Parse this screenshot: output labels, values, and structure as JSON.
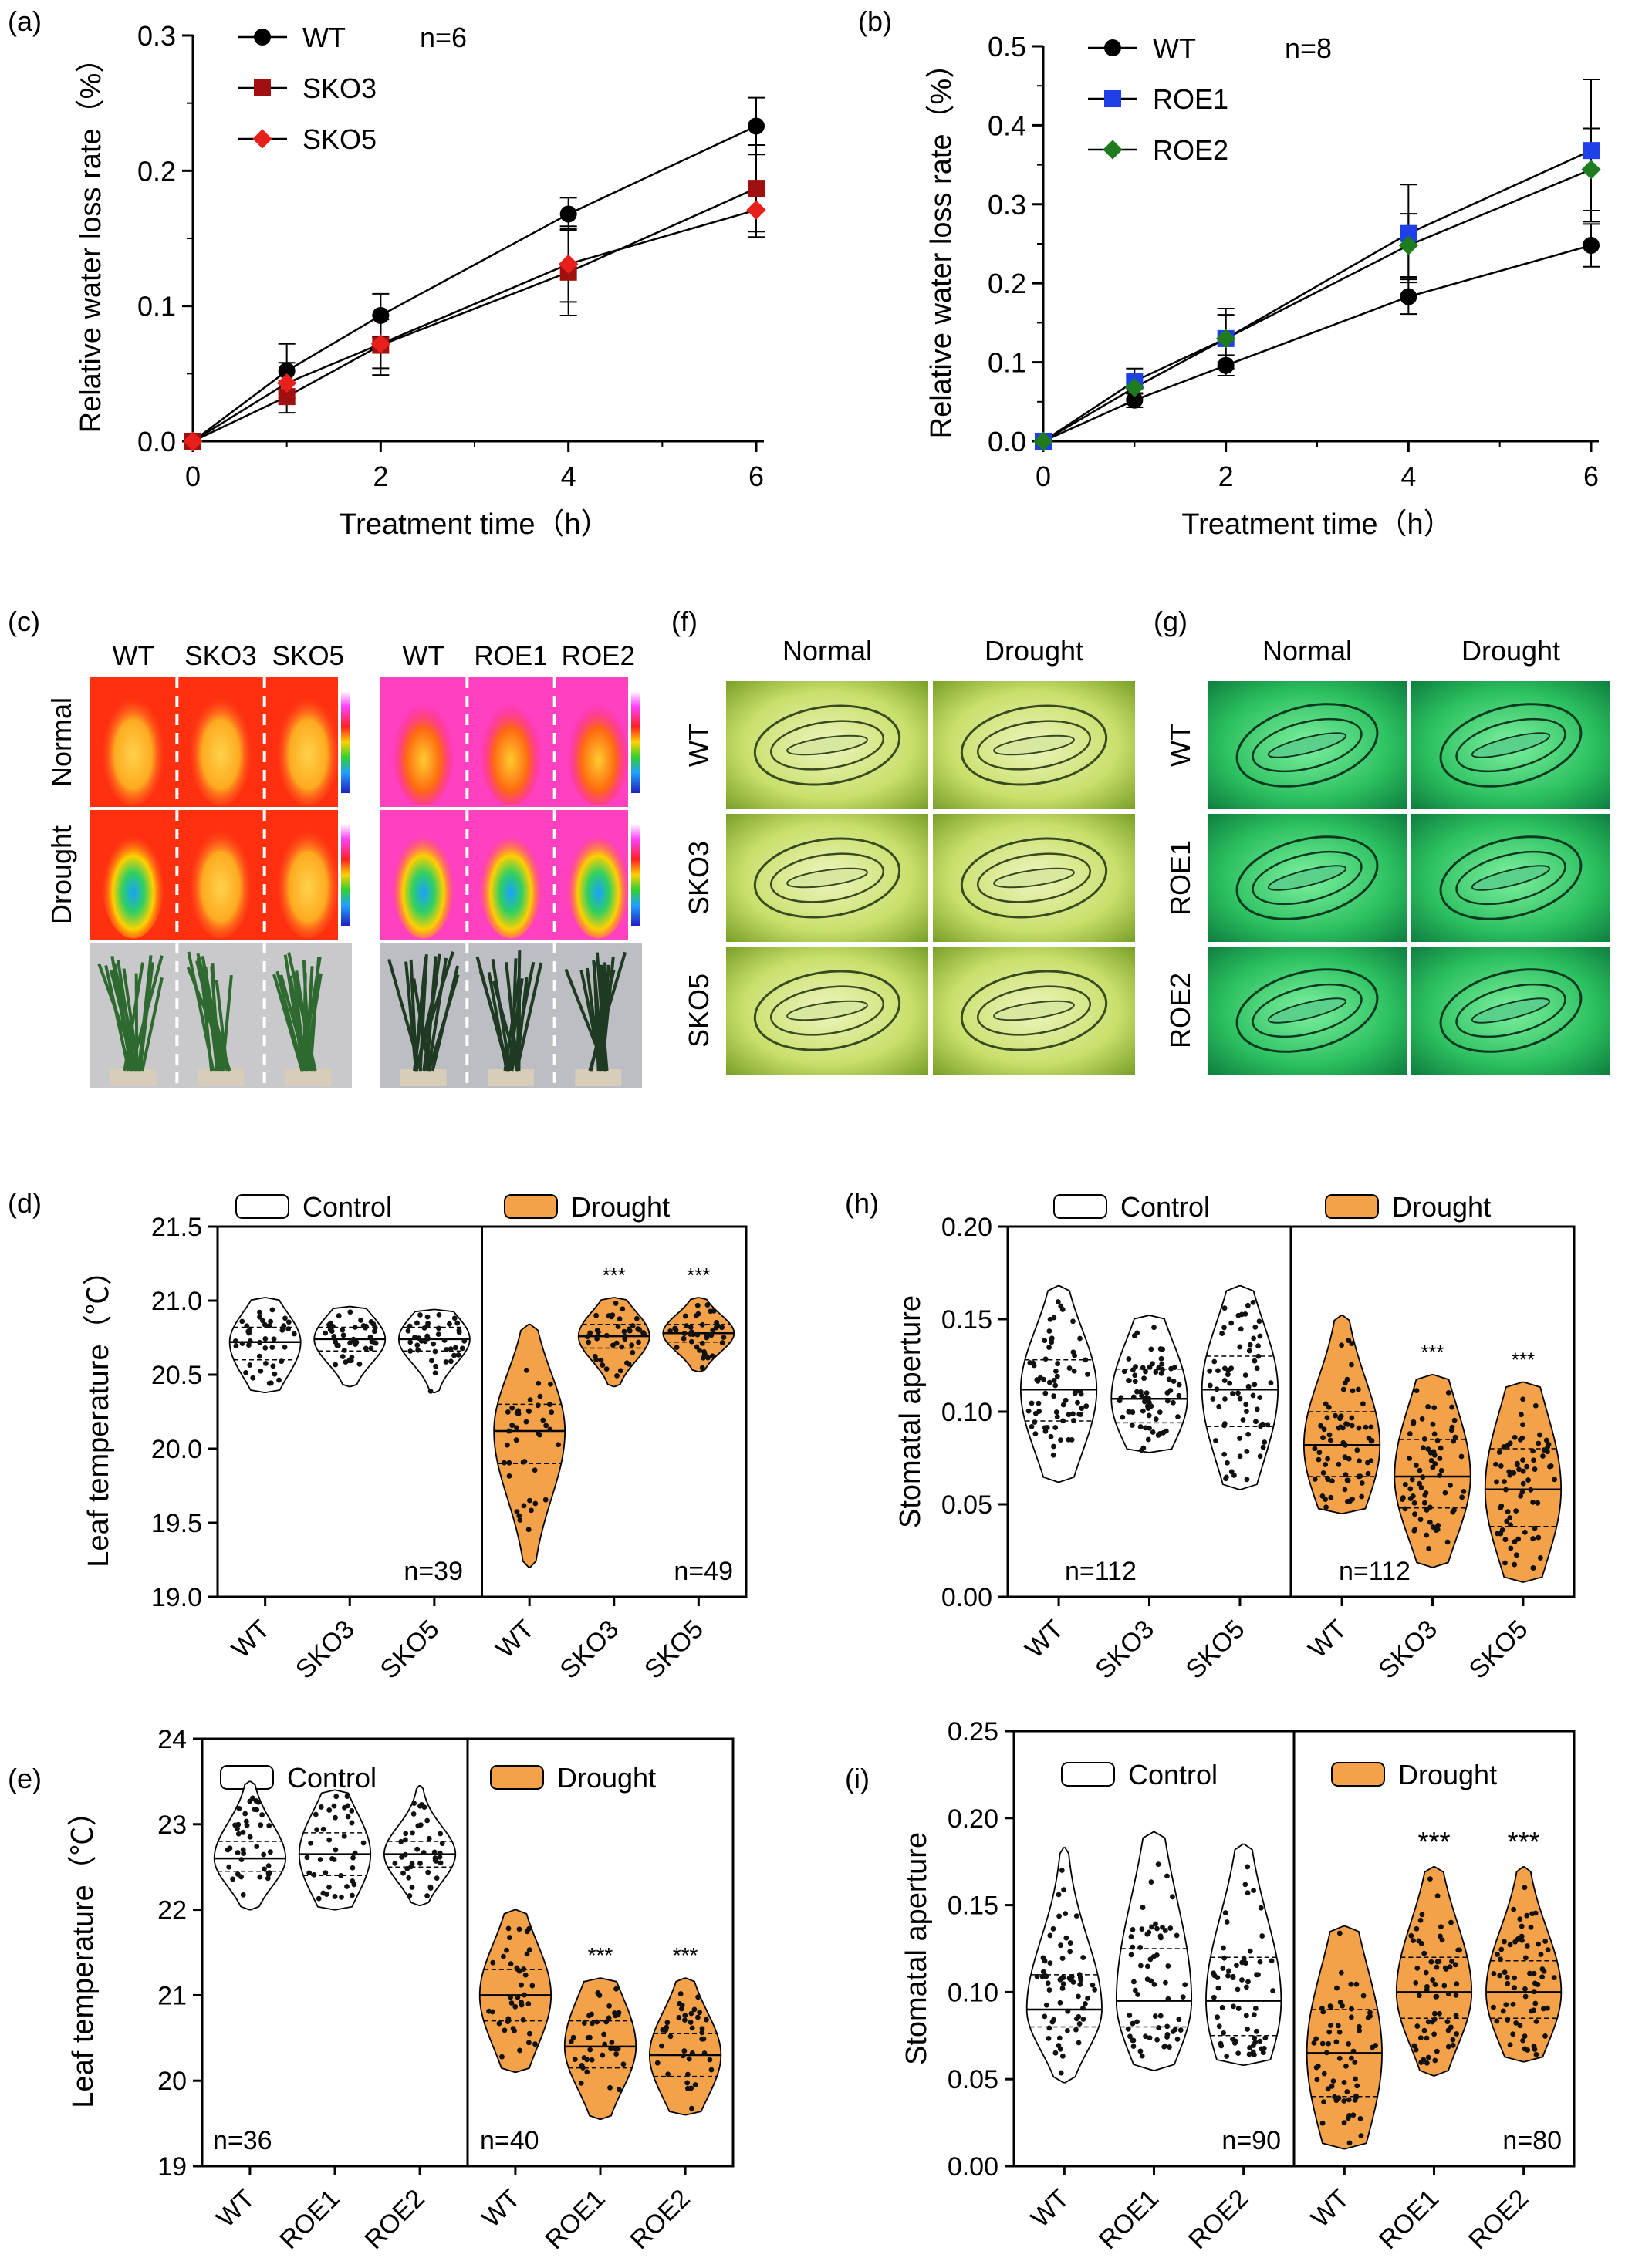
{
  "chart_data": [
    {
      "panel": "(a)",
      "type": "line",
      "annotation": "n=6",
      "xlabel": "Treatment time（h）",
      "ylabel": "Relative water loss rate（%）",
      "xlim": [
        0,
        6
      ],
      "ylim": [
        0,
        0.3
      ],
      "xticks": [
        "0",
        "2",
        "4",
        "6"
      ],
      "yticks": [
        "0.0",
        "0.1",
        "0.2",
        "0.3"
      ],
      "x": [
        0,
        1,
        2,
        4,
        6
      ],
      "series": [
        {
          "name": "WT",
          "color": "#000000",
          "marker": "circle",
          "values": [
            0,
            0.052,
            0.093,
            0.168,
            0.233
          ],
          "errors": [
            0,
            0.02,
            0.016,
            0.012,
            0.021
          ]
        },
        {
          "name": "SKO3",
          "color": "#a01010",
          "marker": "square",
          "values": [
            0,
            0.033,
            0.071,
            0.125,
            0.187
          ],
          "errors": [
            0,
            0.012,
            0.022,
            0.032,
            0.032
          ]
        },
        {
          "name": "SKO5",
          "color": "#e8201c",
          "marker": "diamond",
          "values": [
            0,
            0.043,
            0.072,
            0.131,
            0.171
          ],
          "errors": [
            0,
            0.015,
            0.018,
            0.028,
            0.02
          ]
        }
      ]
    },
    {
      "panel": "(b)",
      "type": "line",
      "annotation": "n=8",
      "xlabel": "Treatment time（h）",
      "ylabel": "Relative water loss rate（%）",
      "xlim": [
        0,
        6
      ],
      "ylim": [
        0,
        0.5
      ],
      "xticks": [
        "0",
        "2",
        "4",
        "6"
      ],
      "yticks": [
        "0.0",
        "0.1",
        "0.2",
        "0.3",
        "0.4",
        "0.5"
      ],
      "x": [
        0,
        1,
        2,
        4,
        6
      ],
      "series": [
        {
          "name": "WT",
          "color": "#000000",
          "marker": "circle",
          "values": [
            0,
            0.052,
            0.096,
            0.183,
            0.248
          ],
          "errors": [
            0,
            0.009,
            0.013,
            0.022,
            0.027
          ]
        },
        {
          "name": "ROE1",
          "color": "#1f3fe8",
          "marker": "square",
          "values": [
            0,
            0.076,
            0.13,
            0.263,
            0.368
          ],
          "errors": [
            0,
            0.016,
            0.038,
            0.062,
            0.09
          ]
        },
        {
          "name": "ROE2",
          "color": "#1e7b1e",
          "marker": "diamond",
          "values": [
            0,
            0.068,
            0.13,
            0.248,
            0.344
          ],
          "errors": [
            0,
            0.014,
            0.03,
            0.04,
            0.052
          ]
        }
      ]
    },
    {
      "panel": "(d)",
      "type": "violin",
      "ylabel": "Leaf temperature（℃）",
      "ylim": [
        19.0,
        21.5
      ],
      "yticks": [
        "19.0",
        "19.5",
        "20.0",
        "20.5",
        "21.0",
        "21.5"
      ],
      "legend": [
        "Control",
        "Drought"
      ],
      "categories": [
        "WT",
        "SKO3",
        "SKO5",
        "WT",
        "SKO3",
        "SKO5"
      ],
      "groups": [
        {
          "name": "Control",
          "annotation": "n=39",
          "violins": [
            {
              "median": 20.72,
              "q1": 20.6,
              "q3": 20.82,
              "min": 20.38,
              "max": 21.02,
              "sig": ""
            },
            {
              "median": 20.74,
              "q1": 20.66,
              "q3": 20.82,
              "min": 20.42,
              "max": 20.96,
              "sig": ""
            },
            {
              "median": 20.74,
              "q1": 20.66,
              "q3": 20.82,
              "min": 20.38,
              "max": 20.94,
              "sig": ""
            }
          ]
        },
        {
          "name": "Drought",
          "annotation": "n=49",
          "violins": [
            {
              "median": 20.12,
              "q1": 19.9,
              "q3": 20.3,
              "min": 19.2,
              "max": 20.84,
              "sig": ""
            },
            {
              "median": 20.76,
              "q1": 20.68,
              "q3": 20.84,
              "min": 20.42,
              "max": 21.02,
              "sig": "***"
            },
            {
              "median": 20.78,
              "q1": 20.72,
              "q3": 20.84,
              "min": 20.52,
              "max": 21.02,
              "sig": "***"
            }
          ]
        }
      ]
    },
    {
      "panel": "(e)",
      "type": "violin",
      "ylabel": "Leaf temperature（℃）",
      "ylim": [
        19,
        24
      ],
      "yticks": [
        "19",
        "20",
        "21",
        "22",
        "23",
        "24"
      ],
      "legend": [
        "Control",
        "Drought"
      ],
      "categories": [
        "WT",
        "ROE1",
        "ROE2",
        "WT",
        "ROE1",
        "ROE2"
      ],
      "groups": [
        {
          "name": "Control",
          "annotation": "n=36",
          "violins": [
            {
              "median": 22.6,
              "q1": 22.45,
              "q3": 22.8,
              "min": 22.0,
              "max": 23.5,
              "sig": ""
            },
            {
              "median": 22.65,
              "q1": 22.4,
              "q3": 22.9,
              "min": 22.0,
              "max": 23.4,
              "sig": ""
            },
            {
              "median": 22.65,
              "q1": 22.5,
              "q3": 22.8,
              "min": 22.05,
              "max": 23.45,
              "sig": ""
            }
          ]
        },
        {
          "name": "Drought",
          "annotation": "n=40",
          "violins": [
            {
              "median": 21.0,
              "q1": 20.7,
              "q3": 21.3,
              "min": 20.1,
              "max": 22.0,
              "sig": ""
            },
            {
              "median": 20.4,
              "q1": 20.15,
              "q3": 20.7,
              "min": 19.55,
              "max": 21.2,
              "sig": "***"
            },
            {
              "median": 20.3,
              "q1": 20.05,
              "q3": 20.55,
              "min": 19.6,
              "max": 21.2,
              "sig": "***"
            }
          ]
        }
      ]
    },
    {
      "panel": "(h)",
      "type": "violin",
      "ylabel": "Stomatal aperture",
      "ylim": [
        0.0,
        0.2
      ],
      "yticks": [
        "0.00",
        "0.05",
        "0.10",
        "0.15",
        "0.20"
      ],
      "legend": [
        "Control",
        "Drought"
      ],
      "categories": [
        "WT",
        "SKO3",
        "SKO5",
        "WT",
        "SKO3",
        "SKO5"
      ],
      "groups": [
        {
          "name": "Control",
          "annotation": "n=112",
          "violins": [
            {
              "median": 0.112,
              "q1": 0.095,
              "q3": 0.128,
              "min": 0.062,
              "max": 0.168,
              "sig": ""
            },
            {
              "median": 0.107,
              "q1": 0.094,
              "q3": 0.123,
              "min": 0.078,
              "max": 0.152,
              "sig": ""
            },
            {
              "median": 0.112,
              "q1": 0.092,
              "q3": 0.13,
              "min": 0.058,
              "max": 0.168,
              "sig": ""
            }
          ]
        },
        {
          "name": "Drought",
          "annotation": "n=112",
          "violins": [
            {
              "median": 0.082,
              "q1": 0.065,
              "q3": 0.1,
              "min": 0.045,
              "max": 0.152,
              "sig": ""
            },
            {
              "median": 0.065,
              "q1": 0.048,
              "q3": 0.085,
              "min": 0.016,
              "max": 0.12,
              "sig": "***"
            },
            {
              "median": 0.058,
              "q1": 0.038,
              "q3": 0.08,
              "min": 0.008,
              "max": 0.116,
              "sig": "***"
            }
          ]
        }
      ]
    },
    {
      "panel": "(i)",
      "type": "violin",
      "ylabel": "Stomatal aperture",
      "ylim": [
        0.0,
        0.25
      ],
      "yticks": [
        "0.00",
        "0.05",
        "0.10",
        "0.15",
        "0.20",
        "0.25"
      ],
      "legend": [
        "Control",
        "Drought"
      ],
      "categories": [
        "WT",
        "ROE1",
        "ROE2",
        "WT",
        "ROE1",
        "ROE2"
      ],
      "groups": [
        {
          "name": "Control",
          "annotation": "n=90",
          "violins": [
            {
              "median": 0.09,
              "q1": 0.08,
              "q3": 0.11,
              "min": 0.048,
              "max": 0.183,
              "sig": ""
            },
            {
              "median": 0.095,
              "q1": 0.08,
              "q3": 0.125,
              "min": 0.055,
              "max": 0.192,
              "sig": ""
            },
            {
              "median": 0.095,
              "q1": 0.075,
              "q3": 0.12,
              "min": 0.058,
              "max": 0.185,
              "sig": ""
            }
          ]
        },
        {
          "name": "Drought",
          "annotation": "n=80",
          "violins": [
            {
              "median": 0.065,
              "q1": 0.04,
              "q3": 0.09,
              "min": 0.01,
              "max": 0.138,
              "sig": ""
            },
            {
              "median": 0.1,
              "q1": 0.085,
              "q3": 0.12,
              "min": 0.052,
              "max": 0.172,
              "sig": "***"
            },
            {
              "median": 0.1,
              "q1": 0.085,
              "q3": 0.118,
              "min": 0.06,
              "max": 0.172,
              "sig": "***"
            }
          ]
        }
      ]
    }
  ],
  "images": [
    {
      "panel": "(c)",
      "left": {
        "columns": [
          "WT",
          "SKO3",
          "SKO5"
        ]
      },
      "right": {
        "columns": [
          "WT",
          "ROE1",
          "ROE2"
        ]
      },
      "rows": [
        "Normal",
        "Drought"
      ]
    },
    {
      "panel": "(f)",
      "columns": [
        "Normal",
        "Drought"
      ],
      "rows": [
        "WT",
        "SKO3",
        "SKO5"
      ]
    },
    {
      "panel": "(g)",
      "columns": [
        "Normal",
        "Drought"
      ],
      "rows": [
        "WT",
        "ROE1",
        "ROE2"
      ]
    }
  ]
}
